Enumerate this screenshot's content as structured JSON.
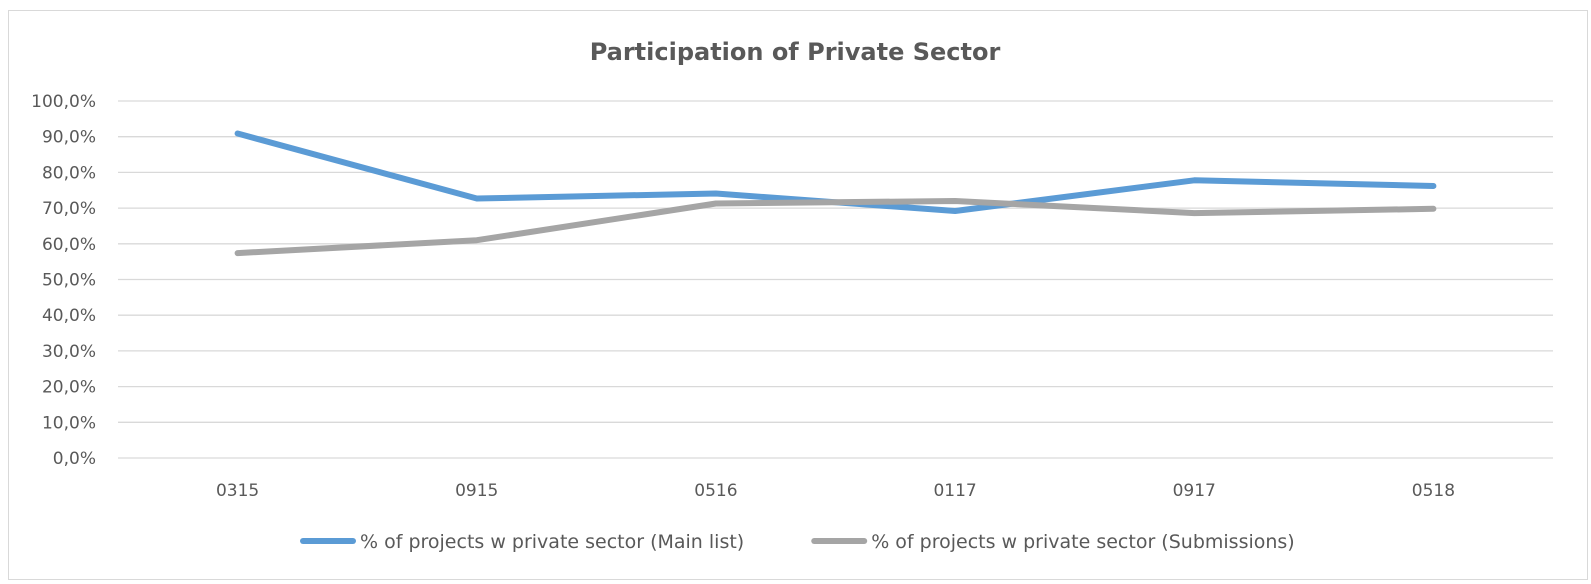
{
  "chart_data": {
    "type": "line",
    "title": "Participation of Private Sector",
    "xlabel": "",
    "ylabel": "",
    "categories": [
      "0315",
      "0915",
      "0516",
      "0117",
      "0917",
      "0518"
    ],
    "ylim": [
      0,
      100
    ],
    "yticks": [
      "0,0%",
      "10,0%",
      "20,0%",
      "30,0%",
      "40,0%",
      "50,0%",
      "60,0%",
      "70,0%",
      "80,0%",
      "90,0%",
      "100,0%"
    ],
    "grid": true,
    "legend_position": "bottom",
    "series": [
      {
        "name": "% of projects w private sector (Main list)",
        "color": "#5b9bd5",
        "values": [
          90.9,
          72.7,
          74.1,
          69.2,
          77.8,
          76.2
        ]
      },
      {
        "name": "% of projects w private sector (Submissions)",
        "color": "#a5a5a5",
        "values": [
          57.4,
          61.0,
          71.3,
          72.0,
          68.6,
          69.8
        ]
      }
    ]
  }
}
